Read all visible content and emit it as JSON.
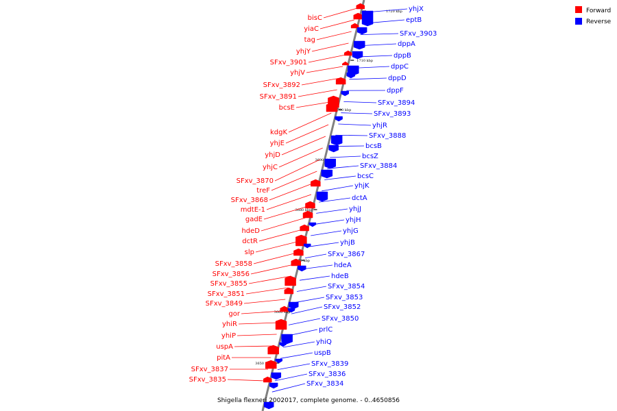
{
  "caption": "Shigella flexneri 2002017, complete genome. - 0..4650856",
  "legend": [
    {
      "label": "Forward",
      "color": "#ff0000"
    },
    {
      "label": "Reverse",
      "color": "#0000ff"
    }
  ],
  "colors": {
    "forward": "#ff0000",
    "reverse": "#0000ff",
    "axis": "#808080",
    "tick": "#000000"
  },
  "scale_ticks": [
    "1720 kbp",
    "1710 kbp",
    "3700 kbp",
    "3690 kbp",
    "3680 kbp",
    "3670 kbp",
    "3660 kbp",
    "3650 kbp"
  ],
  "forward_genes": [
    "bisC",
    "yiaC",
    "tag",
    "yhjY",
    "SFxv_3901",
    "yhjV",
    "SFxv_3892",
    "SFxv_3891",
    "bcsE",
    "kdgK",
    "yhjE",
    "yhjD",
    "yhjC",
    "SFxv_3870",
    "treF",
    "SFxv_3868",
    "mdtE-1",
    "gadE",
    "hdeD",
    "dctR",
    "slp",
    "SFxv_3858",
    "SFxv_3856",
    "SFxv_3855",
    "SFxv_3851",
    "SFxv_3849",
    "gor",
    "yhiR",
    "yhiP",
    "uspA",
    "pitA",
    "SFxv_3837",
    "SFxv_3835"
  ],
  "reverse_genes": [
    "yhjX",
    "eptB",
    "SFxv_3903",
    "dppA",
    "dppB",
    "dppC",
    "dppD",
    "dppF",
    "SFxv_3894",
    "SFxv_3893",
    "yhjR",
    "SFxv_3888",
    "bcsB",
    "bcsZ",
    "SFxv_3884",
    "bcsC",
    "yhjK",
    "dctA",
    "yhjJ",
    "yhjH",
    "yhjG",
    "yhjB",
    "SFxv_3867",
    "hdeA",
    "hdeB",
    "SFxv_3854",
    "SFxv_3853",
    "SFxv_3852",
    "SFxv_3850",
    "prlC",
    "yhiQ",
    "uspB",
    "SFxv_3839",
    "SFxv_3836",
    "SFxv_3834"
  ]
}
